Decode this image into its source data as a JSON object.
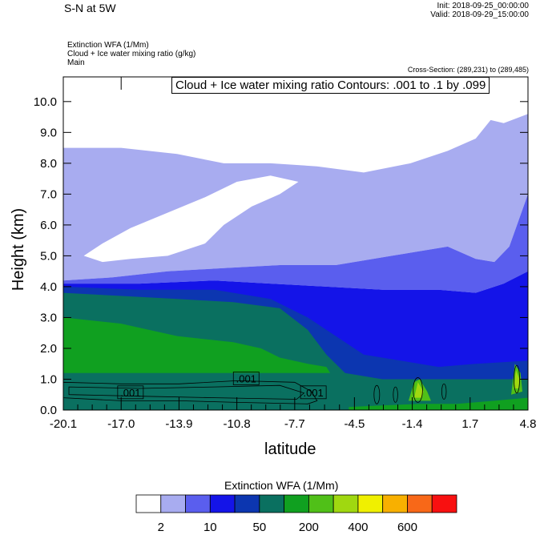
{
  "header": {
    "title": "S-N at 5W",
    "init": "Init: 2018-09-25_00:00:00",
    "valid": "Valid: 2018-09-29_15:00:00",
    "desc1": "Extinction WFA   (1/Mm)",
    "desc2": "Cloud + Ice water mixing ratio   (g/kg)",
    "desc3": "Main",
    "cross_section": "Cross-Section: (289,231) to (289,485)",
    "contour_label": "Cloud + Ice water mixing ratio Contours: .001 to .1 by .099"
  },
  "colorbar": {
    "title": "Extinction WFA  (1/Mm)",
    "colors": [
      "#ffffff",
      "#a8acf0",
      "#5a5eee",
      "#1414e8",
      "#0c36b0",
      "#0a7060",
      "#10a020",
      "#50c018",
      "#a0d810",
      "#f0f000",
      "#f8b000",
      "#f86818",
      "#f81010"
    ],
    "labels": [
      "2",
      "10",
      "50",
      "200",
      "400",
      "600"
    ]
  },
  "chart_data": {
    "type": "heatmap",
    "title": "S-N at 5W",
    "xlabel": "latitude",
    "ylabel": "Height (km)",
    "x_ticks": [
      "-20.1",
      "-17.0",
      "-13.9",
      "-10.8",
      "-7.7",
      "-4.5",
      "-1.4",
      "1.7",
      "4.8"
    ],
    "y_ticks": [
      "0.0",
      "1.0",
      "2.0",
      "3.0",
      "4.0",
      "5.0",
      "6.0",
      "7.0",
      "8.0",
      "9.0",
      "10.0"
    ],
    "xlim": [
      -20.1,
      4.8
    ],
    "ylim": [
      0,
      10.8
    ],
    "contour_labels": [
      ".001",
      ".001",
      ".001"
    ],
    "layers": [
      {
        "level": "white",
        "color": "#ffffff",
        "pts": [
          [
            -20.1,
            10.8
          ],
          [
            4.8,
            10.8
          ],
          [
            4.8,
            9.6
          ],
          [
            3.5,
            9.3
          ],
          [
            2.8,
            9.4
          ],
          [
            2.0,
            8.8
          ],
          [
            0.5,
            8.4
          ],
          [
            -1.5,
            8.0
          ],
          [
            -4.0,
            7.7
          ],
          [
            -6.5,
            7.9
          ],
          [
            -9.0,
            8.0
          ],
          [
            -11.5,
            8.0
          ],
          [
            -14.0,
            8.3
          ],
          [
            -17.0,
            8.5
          ],
          [
            -20.1,
            8.5
          ]
        ]
      },
      {
        "level": "lavender",
        "color": "#a8acf0",
        "pts": [
          [
            -20.1,
            8.5
          ],
          [
            -17.0,
            8.5
          ],
          [
            -14.0,
            8.3
          ],
          [
            -11.5,
            8.0
          ],
          [
            -9.0,
            8.0
          ],
          [
            -6.5,
            7.9
          ],
          [
            -4.0,
            7.7
          ],
          [
            -1.5,
            8.0
          ],
          [
            0.5,
            8.4
          ],
          [
            2.0,
            8.8
          ],
          [
            2.8,
            9.4
          ],
          [
            3.5,
            9.3
          ],
          [
            4.8,
            9.6
          ],
          [
            4.8,
            7.0
          ],
          [
            3.8,
            5.3
          ],
          [
            3.0,
            4.8
          ],
          [
            2.0,
            4.9
          ],
          [
            0.5,
            5.3
          ],
          [
            -2.5,
            5.0
          ],
          [
            -5.5,
            4.7
          ],
          [
            -8.5,
            4.7
          ],
          [
            -11.5,
            4.6
          ],
          [
            -14.5,
            4.5
          ],
          [
            -17.5,
            4.3
          ],
          [
            -20.1,
            4.2
          ]
        ]
      },
      {
        "level": "white-hole",
        "color": "#ffffff",
        "pts": [
          [
            -19.0,
            5.0
          ],
          [
            -18.0,
            5.4
          ],
          [
            -16.5,
            5.9
          ],
          [
            -14.5,
            6.4
          ],
          [
            -12.5,
            6.9
          ],
          [
            -10.8,
            7.4
          ],
          [
            -9.0,
            7.6
          ],
          [
            -7.5,
            7.4
          ],
          [
            -8.5,
            7.0
          ],
          [
            -10.0,
            6.6
          ],
          [
            -11.5,
            6.0
          ],
          [
            -12.5,
            5.4
          ],
          [
            -14.5,
            5.0
          ],
          [
            -16.5,
            4.9
          ],
          [
            -18.0,
            4.8
          ]
        ]
      },
      {
        "level": "medium-blue",
        "color": "#5a5eee",
        "pts": [
          [
            -20.1,
            4.2
          ],
          [
            -17.5,
            4.3
          ],
          [
            -14.5,
            4.5
          ],
          [
            -11.5,
            4.6
          ],
          [
            -8.5,
            4.7
          ],
          [
            -5.5,
            4.7
          ],
          [
            -2.5,
            5.0
          ],
          [
            0.5,
            5.3
          ],
          [
            2.0,
            4.9
          ],
          [
            3.0,
            4.8
          ],
          [
            3.8,
            5.3
          ],
          [
            4.8,
            7.0
          ],
          [
            4.8,
            4.5
          ],
          [
            3.5,
            4.1
          ],
          [
            2.0,
            3.8
          ],
          [
            0.0,
            3.9
          ],
          [
            -3.0,
            3.9
          ],
          [
            -6.0,
            4.0
          ],
          [
            -9.0,
            4.1
          ],
          [
            -12.0,
            4.2
          ],
          [
            -16.0,
            4.1
          ],
          [
            -20.1,
            4.1
          ]
        ]
      },
      {
        "level": "blue",
        "color": "#1414e8",
        "pts": [
          [
            -20.1,
            4.1
          ],
          [
            -16.0,
            4.1
          ],
          [
            -12.0,
            4.2
          ],
          [
            -9.0,
            4.1
          ],
          [
            -6.0,
            4.0
          ],
          [
            -3.0,
            3.9
          ],
          [
            0.0,
            3.9
          ],
          [
            2.0,
            3.8
          ],
          [
            3.5,
            4.1
          ],
          [
            4.8,
            4.5
          ],
          [
            4.8,
            0.0
          ],
          [
            -20.1,
            0.0
          ]
        ]
      },
      {
        "level": "dark-blue",
        "color": "#0c36b0",
        "pts": [
          [
            -20.1,
            4.0
          ],
          [
            -16.0,
            3.9
          ],
          [
            -12.0,
            3.9
          ],
          [
            -9.0,
            3.6
          ],
          [
            -7.0,
            3.0
          ],
          [
            -5.5,
            2.4
          ],
          [
            -4.0,
            1.8
          ],
          [
            -2.0,
            1.6
          ],
          [
            0.0,
            1.4
          ],
          [
            2.0,
            1.5
          ],
          [
            4.8,
            1.6
          ],
          [
            4.8,
            0.0
          ],
          [
            -20.1,
            0.0
          ]
        ]
      },
      {
        "level": "teal",
        "color": "#0a7060",
        "pts": [
          [
            -20.1,
            3.8
          ],
          [
            -17.0,
            3.7
          ],
          [
            -14.0,
            3.6
          ],
          [
            -11.0,
            3.5
          ],
          [
            -8.5,
            3.3
          ],
          [
            -7.0,
            2.6
          ],
          [
            -6.0,
            1.8
          ],
          [
            -5.0,
            1.2
          ],
          [
            -3.0,
            1.0
          ],
          [
            -1.0,
            1.0
          ],
          [
            1.0,
            1.0
          ],
          [
            4.8,
            1.0
          ],
          [
            4.8,
            0.0
          ],
          [
            -20.1,
            0.0
          ]
        ]
      },
      {
        "level": "green",
        "color": "#10a020",
        "pts": [
          [
            -20.1,
            3.0
          ],
          [
            -17.0,
            2.8
          ],
          [
            -14.0,
            2.4
          ],
          [
            -11.0,
            2.2
          ],
          [
            -9.5,
            2.0
          ],
          [
            -8.5,
            1.7
          ],
          [
            -7.0,
            1.5
          ],
          [
            -6.0,
            1.4
          ],
          [
            -5.8,
            1.2
          ],
          [
            -20.1,
            1.2
          ]
        ]
      },
      {
        "level": "green-low",
        "color": "#10a020",
        "pts": [
          [
            -4.8,
            0.1
          ],
          [
            -3.0,
            0.15
          ],
          [
            -1.0,
            0.2
          ],
          [
            1.0,
            0.2
          ],
          [
            3.0,
            0.3
          ],
          [
            4.8,
            0.4
          ],
          [
            4.8,
            0.0
          ],
          [
            -4.8,
            0.0
          ]
        ]
      },
      {
        "level": "light-green",
        "color": "#50c018",
        "pts": [
          [
            -1.6,
            0.3
          ],
          [
            -1.3,
            0.9
          ],
          [
            -1.0,
            1.0
          ],
          [
            -0.6,
            0.6
          ],
          [
            -0.4,
            0.3
          ]
        ]
      },
      {
        "level": "yellow-green",
        "color": "#a0d810",
        "pts": [
          [
            -1.3,
            0.4
          ],
          [
            -1.1,
            0.9
          ],
          [
            -0.8,
            0.6
          ],
          [
            -0.9,
            0.4
          ]
        ]
      },
      {
        "level": "light-green2",
        "color": "#50c018",
        "pts": [
          [
            3.9,
            0.5
          ],
          [
            4.1,
            1.5
          ],
          [
            4.4,
            1.2
          ],
          [
            4.5,
            0.6
          ]
        ]
      },
      {
        "level": "yellow-green2",
        "color": "#a0d810",
        "pts": [
          [
            4.05,
            0.7
          ],
          [
            4.15,
            1.3
          ],
          [
            4.35,
            1.0
          ],
          [
            4.3,
            0.7
          ]
        ]
      }
    ]
  }
}
